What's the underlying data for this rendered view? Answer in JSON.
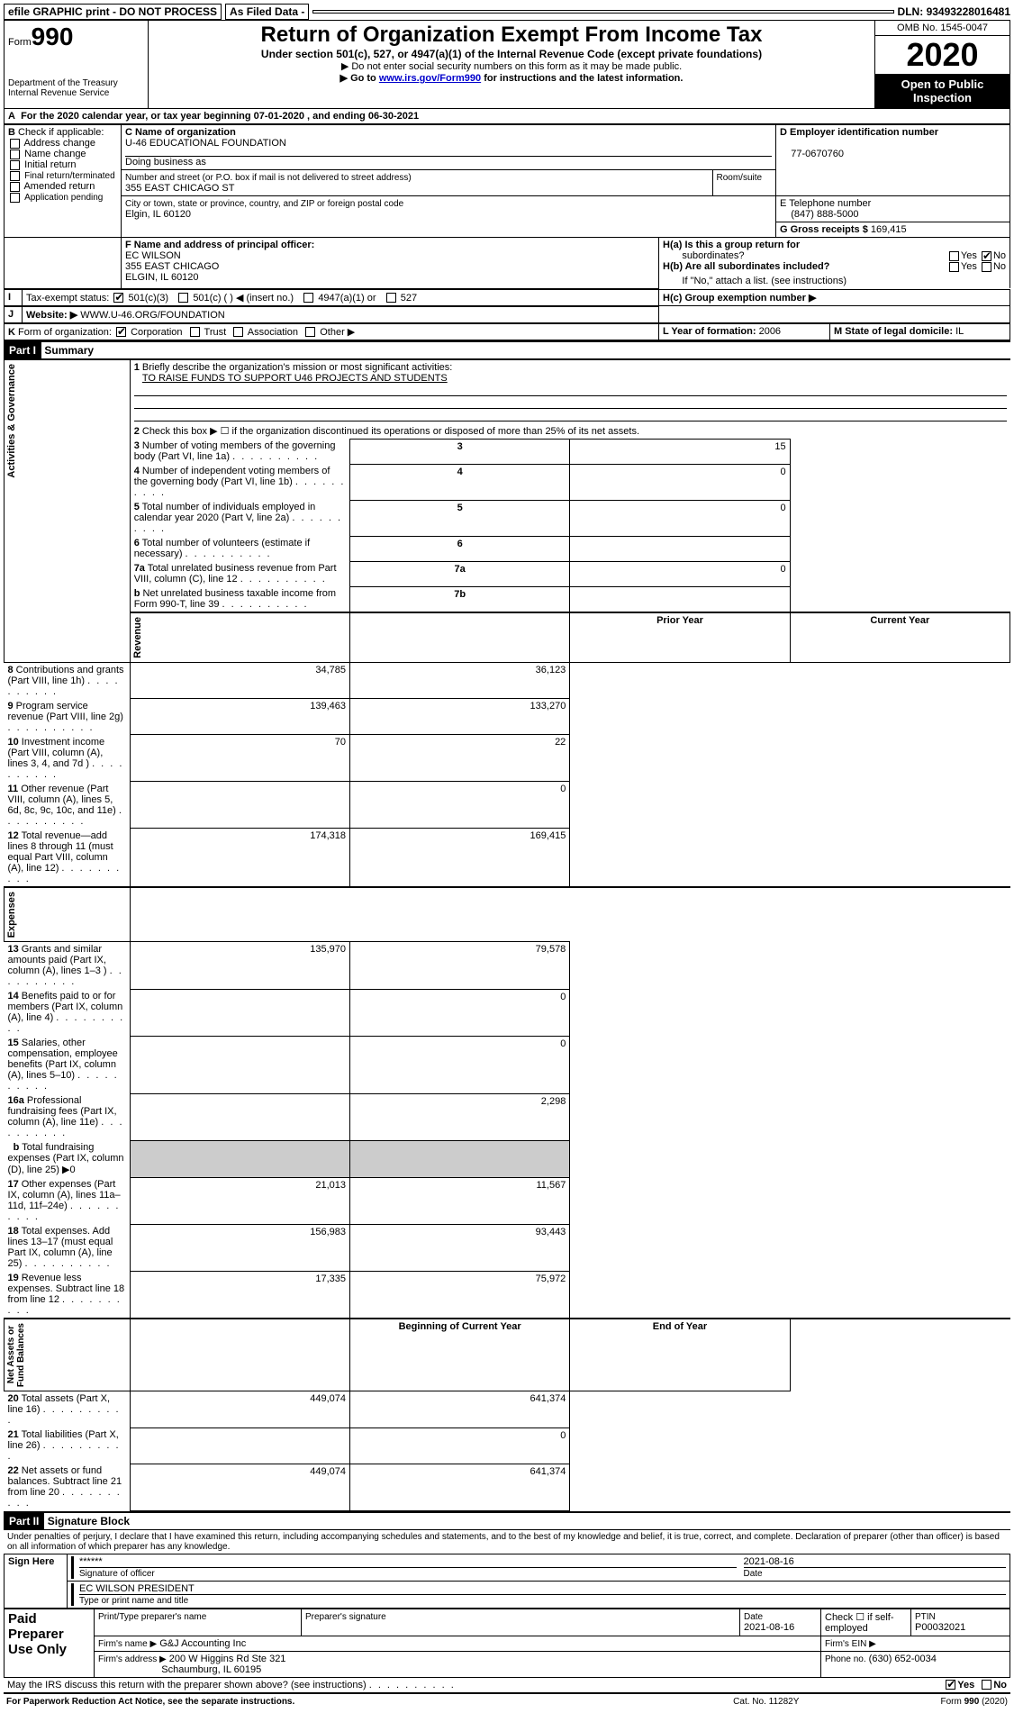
{
  "topbar": {
    "efile": "efile GRAPHIC print - DO NOT PROCESS",
    "asfiled": "As Filed Data -",
    "dln_label": "DLN:",
    "dln": "93493228016481"
  },
  "header": {
    "form_prefix": "Form",
    "form_number": "990",
    "title": "Return of Organization Exempt From Income Tax",
    "subtitle": "Under section 501(c), 527, or 4947(a)(1) of the Internal Revenue Code (except private foundations)",
    "note1": "▶ Do not enter social security numbers on this form as it may be made public.",
    "note2_prefix": "▶ Go to ",
    "note2_link": "www.irs.gov/Form990",
    "note2_suffix": " for instructions and the latest information.",
    "dept": "Department of the Treasury\nInternal Revenue Service",
    "omb": "OMB No. 1545-0047",
    "year": "2020",
    "open": "Open to Public\nInspection"
  },
  "A": {
    "text": "For the 2020 calendar year, or tax year beginning 07-01-2020   , and ending 06-30-2021"
  },
  "B": {
    "label": "Check if applicable:",
    "items": [
      "Address change",
      "Name change",
      "Initial return",
      "Final return/terminated",
      "Amended return",
      "Application pending"
    ]
  },
  "C": {
    "name_label": "C Name of organization",
    "name": "U-46 EDUCATIONAL FOUNDATION",
    "dba_label": "Doing business as",
    "street_label": "Number and street (or P.O. box if mail is not delivered to street address)",
    "room_label": "Room/suite",
    "street": "355 EAST CHICAGO ST",
    "city_label": "City or town, state or province, country, and ZIP or foreign postal code",
    "city": "Elgin, IL  60120"
  },
  "D": {
    "label": "D Employer identification number",
    "value": "77-0670760"
  },
  "E": {
    "label": "E Telephone number",
    "value": "(847) 888-5000"
  },
  "G": {
    "label": "G Gross receipts $",
    "value": "169,415"
  },
  "F": {
    "label": "F  Name and address of principal officer:",
    "name": "EC WILSON",
    "street": "355 EAST CHICAGO",
    "city": "ELGIN, IL  60120"
  },
  "H": {
    "a_label": "H(a)  Is this a group return for",
    "a_label2": "subordinates?",
    "b_label": "H(b) Are all subordinates included?",
    "no_note": "If \"No,\" attach a list. (see instructions)",
    "c_label": "H(c)  Group exemption number ▶",
    "yes": "Yes",
    "no": "No"
  },
  "I": {
    "label": "Tax-exempt status:",
    "opts": [
      "501(c)(3)",
      "501(c) (   ) ◀ (insert no.)",
      "4947(a)(1) or",
      "527"
    ]
  },
  "J": {
    "label": "Website: ▶",
    "value": "WWW.U-46.ORG/FOUNDATION"
  },
  "K": {
    "label": "Form of organization:",
    "opts": [
      "Corporation",
      "Trust",
      "Association",
      "Other ▶"
    ]
  },
  "L": {
    "label": "L Year of formation:",
    "value": "2006"
  },
  "M": {
    "label": "M State of legal domicile:",
    "value": "IL"
  },
  "part1": {
    "label": "Part I",
    "title": "Summary"
  },
  "summary": {
    "line1_label": "Briefly describe the organization's mission or most significant activities:",
    "line1_value": "TO RAISE FUNDS TO SUPPORT U46 PROJECTS AND STUDENTS",
    "line2": "Check this box ▶ ☐ if the organization discontinued its operations or disposed of more than 25% of its net assets.",
    "lines": [
      {
        "n": "3",
        "t": "Number of voting members of the governing body (Part VI, line 1a)",
        "c": "3",
        "v": "15"
      },
      {
        "n": "4",
        "t": "Number of independent voting members of the governing body (Part VI, line 1b)",
        "c": "4",
        "v": "0"
      },
      {
        "n": "5",
        "t": "Total number of individuals employed in calendar year 2020 (Part V, line 2a)",
        "c": "5",
        "v": "0"
      },
      {
        "n": "6",
        "t": "Total number of volunteers (estimate if necessary)",
        "c": "6",
        "v": ""
      },
      {
        "n": "7a",
        "t": "Total unrelated business revenue from Part VIII, column (C), line 12",
        "c": "7a",
        "v": "0"
      },
      {
        "n": "b",
        "t": "Net unrelated business taxable income from Form 990-T, line 39",
        "c": "7b",
        "v": ""
      }
    ],
    "col_prior": "Prior Year",
    "col_current": "Current Year",
    "revenue": [
      {
        "n": "8",
        "t": "Contributions and grants (Part VIII, line 1h)",
        "p": "34,785",
        "c": "36,123"
      },
      {
        "n": "9",
        "t": "Program service revenue (Part VIII, line 2g)",
        "p": "139,463",
        "c": "133,270"
      },
      {
        "n": "10",
        "t": "Investment income (Part VIII, column (A), lines 3, 4, and 7d )",
        "p": "70",
        "c": "22"
      },
      {
        "n": "11",
        "t": "Other revenue (Part VIII, column (A), lines 5, 6d, 8c, 9c, 10c, and 11e)",
        "p": "",
        "c": "0"
      },
      {
        "n": "12",
        "t": "Total revenue—add lines 8 through 11 (must equal Part VIII, column (A), line 12)",
        "p": "174,318",
        "c": "169,415"
      }
    ],
    "expenses": [
      {
        "n": "13",
        "t": "Grants and similar amounts paid (Part IX, column (A), lines 1–3 )",
        "p": "135,970",
        "c": "79,578"
      },
      {
        "n": "14",
        "t": "Benefits paid to or for members (Part IX, column (A), line 4)",
        "p": "",
        "c": "0"
      },
      {
        "n": "15",
        "t": "Salaries, other compensation, employee benefits (Part IX, column (A), lines 5–10)",
        "p": "",
        "c": "0"
      },
      {
        "n": "16a",
        "t": "Professional fundraising fees (Part IX, column (A), line 11e)",
        "p": "",
        "c": "2,298"
      },
      {
        "n": "b",
        "t": "Total fundraising expenses (Part IX, column (D), line 25) ▶0",
        "p": null,
        "c": null
      },
      {
        "n": "17",
        "t": "Other expenses (Part IX, column (A), lines 11a–11d, 11f–24e)",
        "p": "21,013",
        "c": "11,567"
      },
      {
        "n": "18",
        "t": "Total expenses. Add lines 13–17 (must equal Part IX, column (A), line 25)",
        "p": "156,983",
        "c": "93,443"
      },
      {
        "n": "19",
        "t": "Revenue less expenses. Subtract line 18 from line 12",
        "p": "17,335",
        "c": "75,972"
      }
    ],
    "col_boy": "Beginning of Current Year",
    "col_eoy": "End of Year",
    "netassets": [
      {
        "n": "20",
        "t": "Total assets (Part X, line 16)",
        "p": "449,074",
        "c": "641,374"
      },
      {
        "n": "21",
        "t": "Total liabilities (Part X, line 26)",
        "p": "",
        "c": "0"
      },
      {
        "n": "22",
        "t": "Net assets or fund balances. Subtract line 21 from line 20",
        "p": "449,074",
        "c": "641,374"
      }
    ],
    "side_labels": {
      "gov": "Activities & Governance",
      "rev": "Revenue",
      "exp": "Expenses",
      "net": "Net Assets or\nFund Balances"
    }
  },
  "part2": {
    "label": "Part II",
    "title": "Signature Block"
  },
  "sig": {
    "perjury": "Under penalties of perjury, I declare that I have examined this return, including accompanying schedules and statements, and to the best of my knowledge and belief, it is true, correct, and complete. Declaration of preparer (other than officer) is based on all information of which preparer has any knowledge.",
    "sign_here": "Sign Here",
    "stars": "******",
    "sig_of_officer": "Signature of officer",
    "date": "2021-08-16",
    "date_label": "Date",
    "officer": "EC WILSON PRESIDENT",
    "type_label": "Type or print name and title",
    "paid": "Paid Preparer Use Only",
    "prep_name_label": "Print/Type preparer's name",
    "prep_sig_label": "Preparer's signature",
    "prep_date": "2021-08-16",
    "check_label": "Check ☐ if self-employed",
    "ptin_label": "PTIN",
    "ptin": "P00032021",
    "firm_name_label": "Firm's name    ▶",
    "firm_name": "G&J Accounting Inc",
    "firm_ein_label": "Firm's EIN ▶",
    "firm_addr_label": "Firm's address ▶",
    "firm_addr": "200 W Higgins Rd Ste 321",
    "firm_city": "Schaumburg, IL  60195",
    "phone_label": "Phone no.",
    "phone": "(630) 652-0034",
    "discuss": "May the IRS discuss this return with the preparer shown above? (see instructions)",
    "yes": "Yes",
    "no": "No"
  },
  "footer": {
    "left": "For Paperwork Reduction Act Notice, see the separate instructions.",
    "mid": "Cat. No. 11282Y",
    "right": "Form 990 (2020)"
  }
}
